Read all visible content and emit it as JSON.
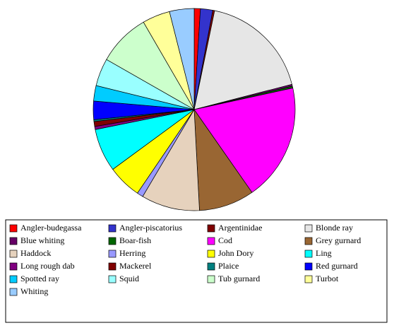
{
  "chart_data": {
    "type": "pie",
    "categories": [
      "Angler-budegassa",
      "Angler-piscatorius",
      "Argentinidae",
      "Blonde ray",
      "Blue whiting",
      "Boar-fish",
      "Cod",
      "Grey gurnard",
      "Haddock",
      "Herring",
      "John Dory",
      "Ling",
      "Long rough dab",
      "Mackerel",
      "Plaice",
      "Red gurnard",
      "Spotted ray",
      "Squid",
      "Tub gurnard",
      "Turbot",
      "Whiting"
    ],
    "values": [
      1,
      2,
      0.3,
      18,
      0.3,
      0.3,
      19,
      9,
      9.5,
      1,
      5.5,
      7,
      0.5,
      0.8,
      0.3,
      3,
      2.5,
      4.5,
      8.5,
      4.5,
      4
    ],
    "colors": [
      "#ff0000",
      "#3333cc",
      "#800000",
      "#e6e6e6",
      "#660066",
      "#006600",
      "#ff00ff",
      "#996633",
      "#e6d2bd",
      "#9999ff",
      "#ffff00",
      "#00ffff",
      "#800080",
      "#800000",
      "#008080",
      "#0000ff",
      "#00ccff",
      "#99ffff",
      "#ccffcc",
      "#ffff99",
      "#99ccff"
    ]
  }
}
